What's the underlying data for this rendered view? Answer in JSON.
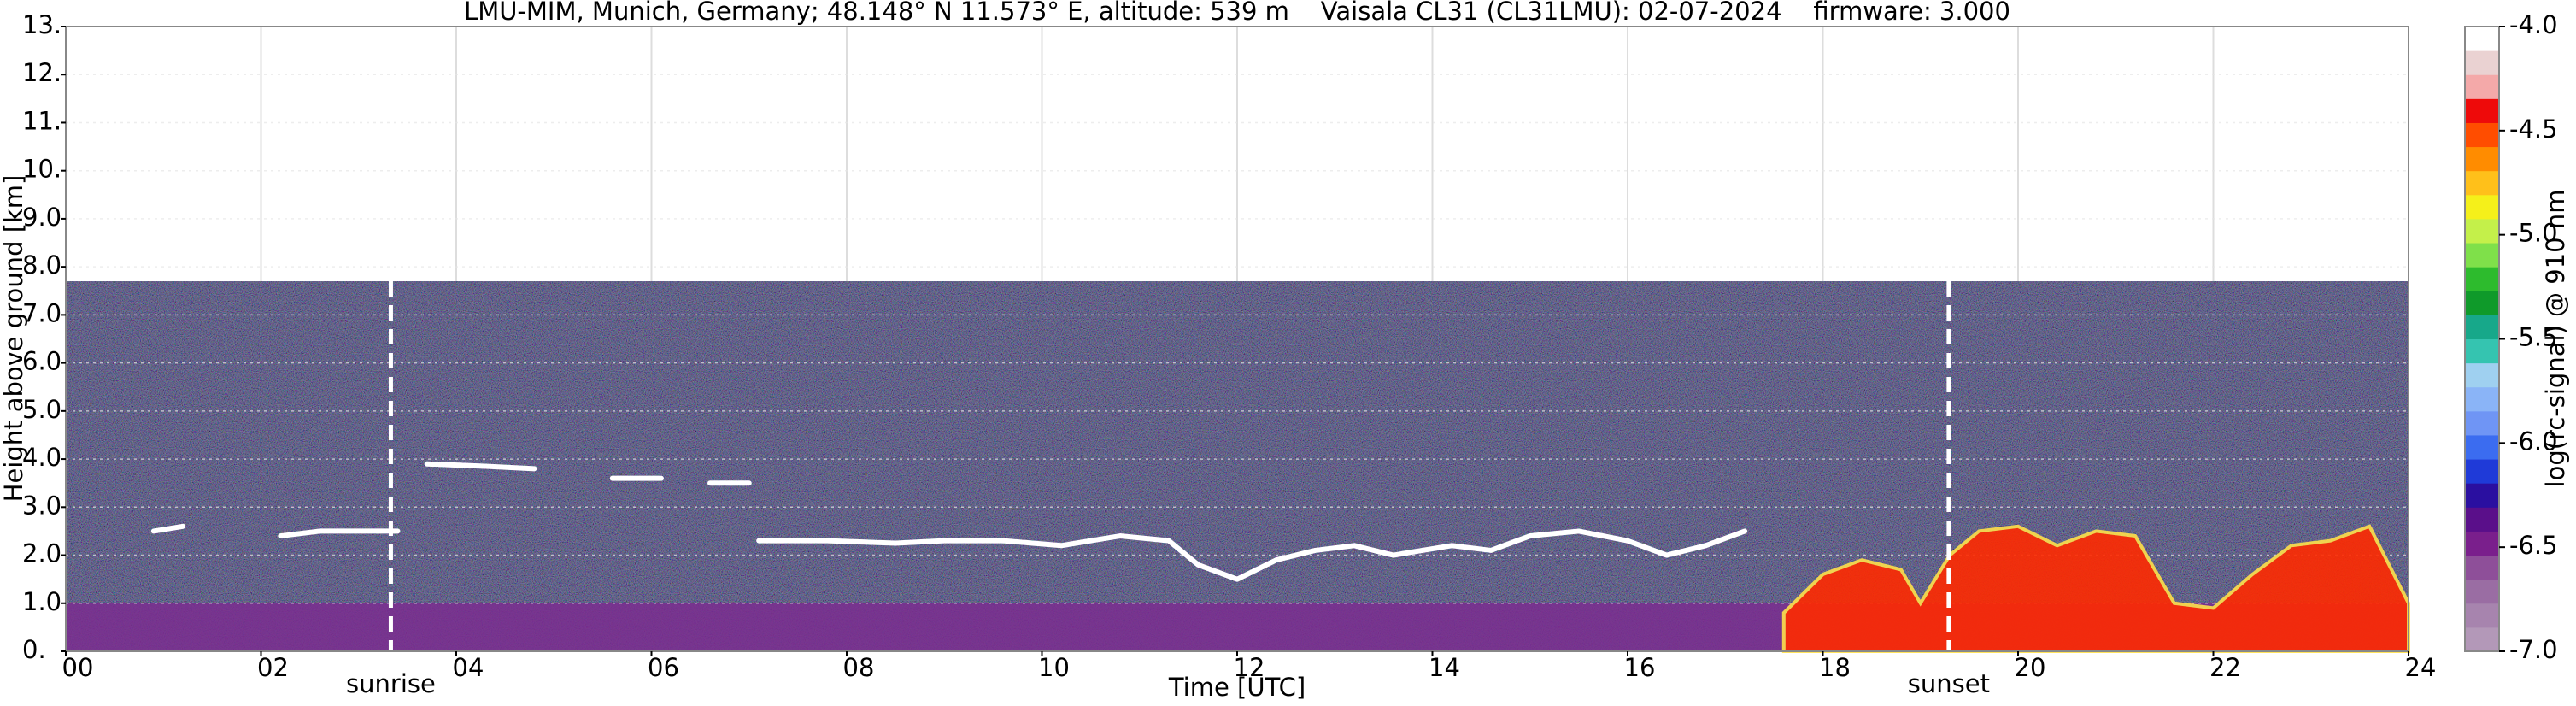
{
  "chart_data": {
    "type": "heatmap",
    "title": "LMU-MIM, Munich, Germany; 48.148° N 11.573° E, altitude: 539 m    Vaisala CL31 (CL31LMU): 02-07-2024    firmware: 3.000",
    "xlabel": "Time [UTC]",
    "ylabel": "Height above ground [km]",
    "xlim": [
      0,
      24
    ],
    "xticks": [
      {
        "value": 0,
        "label": "00"
      },
      {
        "value": 2,
        "label": "02"
      },
      {
        "value": 4,
        "label": "04"
      },
      {
        "value": 6,
        "label": "06"
      },
      {
        "value": 8,
        "label": "08"
      },
      10,
      12,
      14,
      16,
      18,
      20,
      22,
      24
    ],
    "ylim": [
      0,
      13
    ],
    "yticks": [
      {
        "value": 0,
        "label": "0."
      },
      {
        "value": 1,
        "label": "1.0"
      },
      {
        "value": 2,
        "label": "2.0"
      },
      {
        "value": 3,
        "label": "3.0"
      },
      {
        "value": 4,
        "label": "4.0"
      },
      {
        "value": 5,
        "label": "5.0"
      },
      {
        "value": 6,
        "label": "6.0"
      },
      {
        "value": 7,
        "label": "7.0"
      },
      {
        "value": 8,
        "label": "8.0"
      },
      {
        "value": 9,
        "label": "9.0"
      },
      {
        "value": 10,
        "label": "10."
      },
      {
        "value": 11,
        "label": "11."
      },
      {
        "value": 12,
        "label": "12."
      },
      {
        "value": 13,
        "label": "13."
      }
    ],
    "grid": true,
    "signal_top": 7.7,
    "signal_color": "#1c1a4c",
    "surface_layer_top": 1.0,
    "surface_layer_color": "#7a2d8f",
    "series": [
      {
        "type": "line",
        "color": "#ffffff",
        "x": [
          0.9,
          1.2,
          null,
          2.2,
          2.6,
          3.0,
          3.4,
          null,
          3.7,
          4.3,
          4.8,
          null,
          5.6,
          6.1,
          null,
          6.6,
          7.0,
          null,
          7.1,
          7.8,
          8.5,
          9.0,
          9.6,
          10.2,
          10.8,
          11.3,
          11.6,
          12.0,
          12.4,
          12.8,
          13.2,
          13.6,
          14.2,
          14.6,
          15.0,
          15.5,
          16.0,
          16.4,
          16.8,
          17.2
        ],
        "values": [
          2.5,
          2.6,
          null,
          2.4,
          2.5,
          2.5,
          2.5,
          null,
          3.9,
          3.85,
          3.8,
          null,
          3.6,
          3.6,
          null,
          3.5,
          3.5,
          null,
          2.3,
          2.3,
          2.25,
          2.3,
          2.3,
          2.2,
          2.4,
          2.3,
          1.8,
          1.5,
          1.9,
          2.1,
          2.2,
          2.0,
          2.2,
          2.1,
          2.4,
          2.5,
          2.3,
          2.0,
          2.2,
          2.5
        ]
      },
      {
        "type": "area",
        "color": "#ff2a00",
        "x": [
          17.6,
          18.0,
          18.4,
          18.8,
          19.0,
          19.3,
          19.6,
          20.0,
          20.4,
          20.8,
          21.2,
          21.6,
          22.0,
          22.4,
          22.8,
          23.2,
          23.6,
          24.0
        ],
        "values": [
          0.8,
          1.6,
          1.9,
          1.7,
          1.0,
          2.0,
          2.5,
          2.6,
          2.2,
          2.5,
          2.4,
          1.0,
          0.9,
          1.6,
          2.2,
          2.3,
          2.6,
          1.0
        ]
      }
    ],
    "annotations": [
      {
        "text": "sunrise",
        "x": 3.33
      },
      {
        "text": "sunset",
        "x": 19.29
      }
    ],
    "colorbar": {
      "label": "log(rc-signal) @ 910 nm",
      "clim": [
        -7,
        -4
      ],
      "cticks": [
        {
          "value": -7,
          "label": "-7.0"
        },
        -6.5,
        {
          "value": -6,
          "label": "-6.0"
        },
        -5.5,
        {
          "value": -5,
          "label": "-5.0"
        },
        -4.5,
        {
          "value": -4,
          "label": "-4.0"
        }
      ],
      "colors": [
        "#b398b8",
        "#a784ae",
        "#9a6da3",
        "#8e4f99",
        "#7a1f8c",
        "#5a0f8a",
        "#2a0fa0",
        "#1f3ad8",
        "#3b6cf0",
        "#6f95f5",
        "#8ab4f7",
        "#9fd0f0",
        "#35c4b0",
        "#17a88a",
        "#0f9a2a",
        "#2dbb2d",
        "#7fe04a",
        "#c4f04a",
        "#f5f01a",
        "#ffc01a",
        "#ff8c00",
        "#ff4d00",
        "#ee0a0a",
        "#f4a9a9",
        "#ead2d2",
        "#ffffff"
      ]
    }
  }
}
